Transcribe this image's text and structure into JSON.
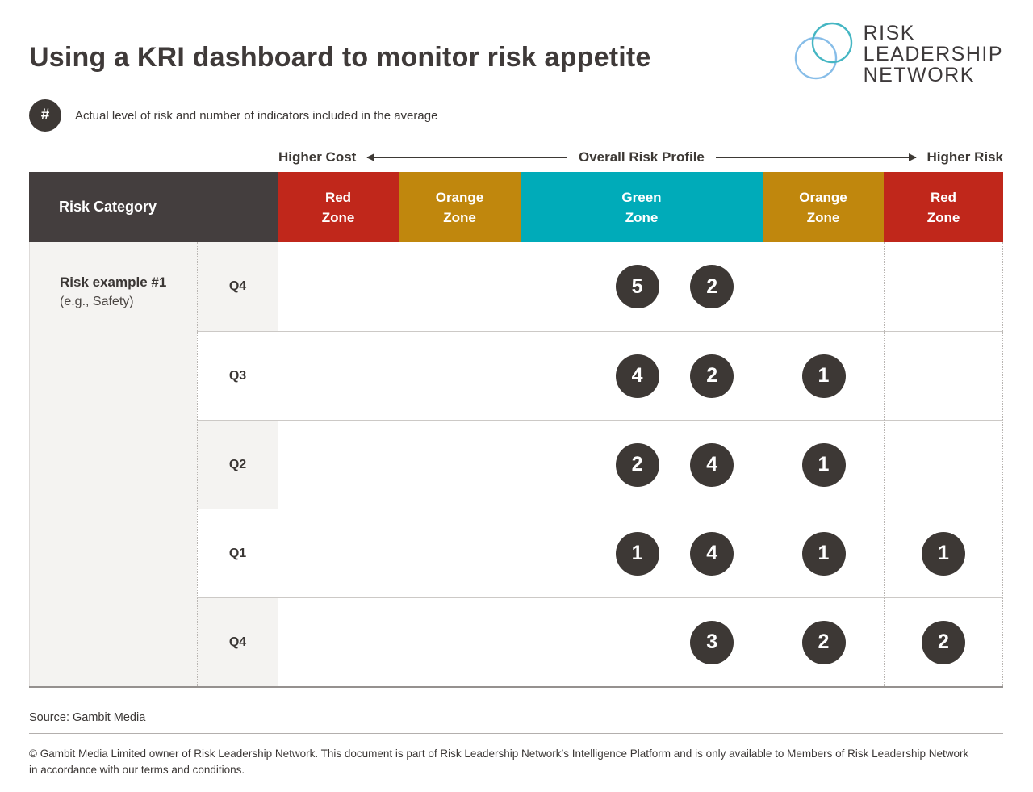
{
  "header": {
    "title": "Using a KRI dashboard to monitor risk appetite",
    "logo": {
      "line1": "RISK",
      "line2": "LEADERSHIP",
      "line3": "NETWORK"
    },
    "legend": {
      "symbol": "#",
      "text": "Actual level of risk and number of indicators included in the average"
    }
  },
  "axis": {
    "left_label": "Higher Cost",
    "center_label": "Overall Risk Profile",
    "right_label": "Higher Risk"
  },
  "table": {
    "corner_label": "Risk Category",
    "zones": [
      {
        "id": "red-left",
        "line1": "Red",
        "line2": "Zone",
        "color": "#c0271b"
      },
      {
        "id": "orange-left",
        "line1": "Orange",
        "line2": "Zone",
        "color": "#c0870d"
      },
      {
        "id": "green",
        "line1": "Green",
        "line2": "Zone",
        "color": "#00abb9"
      },
      {
        "id": "orange-right",
        "line1": "Orange",
        "line2": "Zone",
        "color": "#c0870d"
      },
      {
        "id": "red-right",
        "line1": "Red",
        "line2": "Zone",
        "color": "#c0271b"
      }
    ],
    "risk": {
      "title": "Risk example #1",
      "subtitle": "(e.g., Safety)"
    },
    "rows": [
      {
        "quarter": "Q4",
        "shaded": true,
        "markers": [
          {
            "zone": "green",
            "slot": "left",
            "value": "5"
          },
          {
            "zone": "green",
            "slot": "right",
            "value": "2"
          }
        ]
      },
      {
        "quarter": "Q3",
        "shaded": false,
        "markers": [
          {
            "zone": "green",
            "slot": "left",
            "value": "4"
          },
          {
            "zone": "green",
            "slot": "right",
            "value": "2"
          },
          {
            "zone": "orange-right",
            "slot": "center",
            "value": "1"
          }
        ]
      },
      {
        "quarter": "Q2",
        "shaded": true,
        "markers": [
          {
            "zone": "green",
            "slot": "left",
            "value": "2"
          },
          {
            "zone": "green",
            "slot": "right",
            "value": "4"
          },
          {
            "zone": "orange-right",
            "slot": "center",
            "value": "1"
          }
        ]
      },
      {
        "quarter": "Q1",
        "shaded": false,
        "markers": [
          {
            "zone": "green",
            "slot": "left",
            "value": "1"
          },
          {
            "zone": "green",
            "slot": "right",
            "value": "4"
          },
          {
            "zone": "orange-right",
            "slot": "center",
            "value": "1"
          },
          {
            "zone": "red-right",
            "slot": "center",
            "value": "1"
          }
        ]
      },
      {
        "quarter": "Q4",
        "shaded": true,
        "markers": [
          {
            "zone": "green",
            "slot": "right",
            "value": "3"
          },
          {
            "zone": "orange-right",
            "slot": "center",
            "value": "2"
          },
          {
            "zone": "red-right",
            "slot": "center",
            "value": "2"
          }
        ]
      }
    ]
  },
  "footer": {
    "source": "Source: Gambit Media",
    "copyright": "© Gambit Media Limited owner of Risk Leadership Network.  This document is part of Risk Leadership Network’s Intelligence Platform and is only available to Members of Risk Leadership Network in accordance with our terms and conditions."
  },
  "colors": {
    "red_zone": "#c0271b",
    "orange_zone": "#c0870d",
    "green_zone": "#00abb9",
    "header_dark": "#443e3e",
    "marker": "#3d3835",
    "shaded_cell": "#f4f3f1",
    "logo_circle_teal": "#45b6c3",
    "logo_circle_blue": "#87bde8"
  },
  "chart_data": {
    "type": "table",
    "title": "Using a KRI dashboard to monitor risk appetite",
    "x_axis": {
      "label": "Overall Risk Profile",
      "left_end": "Higher Cost",
      "right_end": "Higher Risk"
    },
    "columns": [
      "Risk Category",
      "Red Zone",
      "Orange Zone",
      "Green Zone",
      "Orange Zone",
      "Red Zone"
    ],
    "risk_category": "Risk example #1 (e.g., Safety)",
    "legend": "# = Actual level of risk and number of indicators included in the average",
    "rows": [
      {
        "quarter": "Q4",
        "red_zone_cost": [],
        "orange_zone_cost": [],
        "green_zone": [
          5,
          2
        ],
        "orange_zone_risk": [],
        "red_zone_risk": []
      },
      {
        "quarter": "Q3",
        "red_zone_cost": [],
        "orange_zone_cost": [],
        "green_zone": [
          4,
          2
        ],
        "orange_zone_risk": [
          1
        ],
        "red_zone_risk": []
      },
      {
        "quarter": "Q2",
        "red_zone_cost": [],
        "orange_zone_cost": [],
        "green_zone": [
          2,
          4
        ],
        "orange_zone_risk": [
          1
        ],
        "red_zone_risk": []
      },
      {
        "quarter": "Q1",
        "red_zone_cost": [],
        "orange_zone_cost": [],
        "green_zone": [
          1,
          4
        ],
        "orange_zone_risk": [
          1
        ],
        "red_zone_risk": [
          1
        ]
      },
      {
        "quarter": "Q4",
        "red_zone_cost": [],
        "orange_zone_cost": [],
        "green_zone": [
          3
        ],
        "orange_zone_risk": [
          2
        ],
        "red_zone_risk": [
          2
        ]
      }
    ],
    "source": "Gambit Media"
  }
}
